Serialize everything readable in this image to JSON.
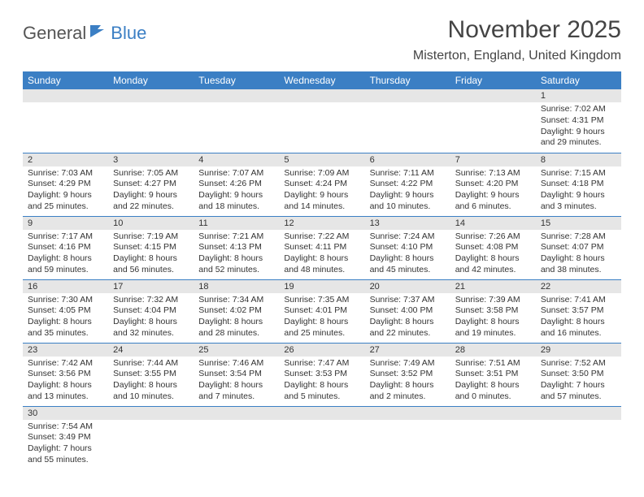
{
  "logo": {
    "text1": "General",
    "text2": "Blue"
  },
  "title": "November 2025",
  "location": "Misterton, England, United Kingdom",
  "header_bg": "#3b7fc4",
  "daynum_bg": "#e6e6e6",
  "days": [
    "Sunday",
    "Monday",
    "Tuesday",
    "Wednesday",
    "Thursday",
    "Friday",
    "Saturday"
  ],
  "weeks": [
    [
      null,
      null,
      null,
      null,
      null,
      null,
      {
        "n": "1",
        "sr": "Sunrise: 7:02 AM",
        "ss": "Sunset: 4:31 PM",
        "dl": "Daylight: 9 hours and 29 minutes."
      }
    ],
    [
      {
        "n": "2",
        "sr": "Sunrise: 7:03 AM",
        "ss": "Sunset: 4:29 PM",
        "dl": "Daylight: 9 hours and 25 minutes."
      },
      {
        "n": "3",
        "sr": "Sunrise: 7:05 AM",
        "ss": "Sunset: 4:27 PM",
        "dl": "Daylight: 9 hours and 22 minutes."
      },
      {
        "n": "4",
        "sr": "Sunrise: 7:07 AM",
        "ss": "Sunset: 4:26 PM",
        "dl": "Daylight: 9 hours and 18 minutes."
      },
      {
        "n": "5",
        "sr": "Sunrise: 7:09 AM",
        "ss": "Sunset: 4:24 PM",
        "dl": "Daylight: 9 hours and 14 minutes."
      },
      {
        "n": "6",
        "sr": "Sunrise: 7:11 AM",
        "ss": "Sunset: 4:22 PM",
        "dl": "Daylight: 9 hours and 10 minutes."
      },
      {
        "n": "7",
        "sr": "Sunrise: 7:13 AM",
        "ss": "Sunset: 4:20 PM",
        "dl": "Daylight: 9 hours and 6 minutes."
      },
      {
        "n": "8",
        "sr": "Sunrise: 7:15 AM",
        "ss": "Sunset: 4:18 PM",
        "dl": "Daylight: 9 hours and 3 minutes."
      }
    ],
    [
      {
        "n": "9",
        "sr": "Sunrise: 7:17 AM",
        "ss": "Sunset: 4:16 PM",
        "dl": "Daylight: 8 hours and 59 minutes."
      },
      {
        "n": "10",
        "sr": "Sunrise: 7:19 AM",
        "ss": "Sunset: 4:15 PM",
        "dl": "Daylight: 8 hours and 56 minutes."
      },
      {
        "n": "11",
        "sr": "Sunrise: 7:21 AM",
        "ss": "Sunset: 4:13 PM",
        "dl": "Daylight: 8 hours and 52 minutes."
      },
      {
        "n": "12",
        "sr": "Sunrise: 7:22 AM",
        "ss": "Sunset: 4:11 PM",
        "dl": "Daylight: 8 hours and 48 minutes."
      },
      {
        "n": "13",
        "sr": "Sunrise: 7:24 AM",
        "ss": "Sunset: 4:10 PM",
        "dl": "Daylight: 8 hours and 45 minutes."
      },
      {
        "n": "14",
        "sr": "Sunrise: 7:26 AM",
        "ss": "Sunset: 4:08 PM",
        "dl": "Daylight: 8 hours and 42 minutes."
      },
      {
        "n": "15",
        "sr": "Sunrise: 7:28 AM",
        "ss": "Sunset: 4:07 PM",
        "dl": "Daylight: 8 hours and 38 minutes."
      }
    ],
    [
      {
        "n": "16",
        "sr": "Sunrise: 7:30 AM",
        "ss": "Sunset: 4:05 PM",
        "dl": "Daylight: 8 hours and 35 minutes."
      },
      {
        "n": "17",
        "sr": "Sunrise: 7:32 AM",
        "ss": "Sunset: 4:04 PM",
        "dl": "Daylight: 8 hours and 32 minutes."
      },
      {
        "n": "18",
        "sr": "Sunrise: 7:34 AM",
        "ss": "Sunset: 4:02 PM",
        "dl": "Daylight: 8 hours and 28 minutes."
      },
      {
        "n": "19",
        "sr": "Sunrise: 7:35 AM",
        "ss": "Sunset: 4:01 PM",
        "dl": "Daylight: 8 hours and 25 minutes."
      },
      {
        "n": "20",
        "sr": "Sunrise: 7:37 AM",
        "ss": "Sunset: 4:00 PM",
        "dl": "Daylight: 8 hours and 22 minutes."
      },
      {
        "n": "21",
        "sr": "Sunrise: 7:39 AM",
        "ss": "Sunset: 3:58 PM",
        "dl": "Daylight: 8 hours and 19 minutes."
      },
      {
        "n": "22",
        "sr": "Sunrise: 7:41 AM",
        "ss": "Sunset: 3:57 PM",
        "dl": "Daylight: 8 hours and 16 minutes."
      }
    ],
    [
      {
        "n": "23",
        "sr": "Sunrise: 7:42 AM",
        "ss": "Sunset: 3:56 PM",
        "dl": "Daylight: 8 hours and 13 minutes."
      },
      {
        "n": "24",
        "sr": "Sunrise: 7:44 AM",
        "ss": "Sunset: 3:55 PM",
        "dl": "Daylight: 8 hours and 10 minutes."
      },
      {
        "n": "25",
        "sr": "Sunrise: 7:46 AM",
        "ss": "Sunset: 3:54 PM",
        "dl": "Daylight: 8 hours and 7 minutes."
      },
      {
        "n": "26",
        "sr": "Sunrise: 7:47 AM",
        "ss": "Sunset: 3:53 PM",
        "dl": "Daylight: 8 hours and 5 minutes."
      },
      {
        "n": "27",
        "sr": "Sunrise: 7:49 AM",
        "ss": "Sunset: 3:52 PM",
        "dl": "Daylight: 8 hours and 2 minutes."
      },
      {
        "n": "28",
        "sr": "Sunrise: 7:51 AM",
        "ss": "Sunset: 3:51 PM",
        "dl": "Daylight: 8 hours and 0 minutes."
      },
      {
        "n": "29",
        "sr": "Sunrise: 7:52 AM",
        "ss": "Sunset: 3:50 PM",
        "dl": "Daylight: 7 hours and 57 minutes."
      }
    ],
    [
      {
        "n": "30",
        "sr": "Sunrise: 7:54 AM",
        "ss": "Sunset: 3:49 PM",
        "dl": "Daylight: 7 hours and 55 minutes."
      },
      null,
      null,
      null,
      null,
      null,
      null
    ]
  ]
}
